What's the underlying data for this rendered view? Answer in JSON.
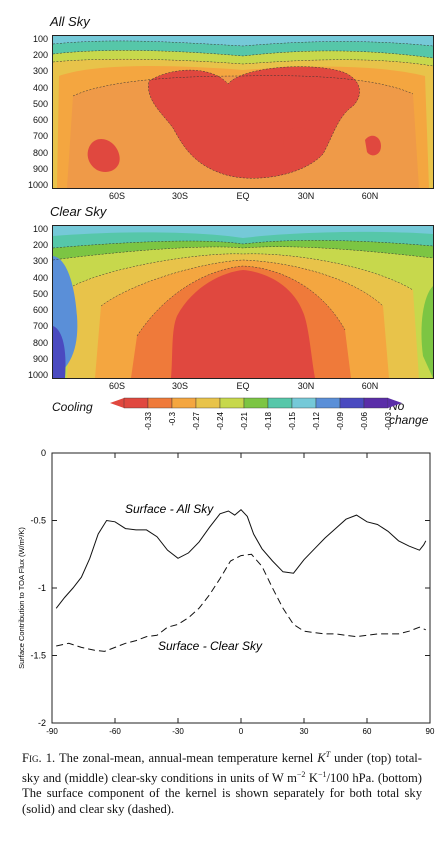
{
  "panels": {
    "all_sky": {
      "title": "All Sky"
    },
    "clear_sky": {
      "title": "Clear Sky"
    },
    "pressure_ticks": [
      "100",
      "200",
      "300",
      "400",
      "500",
      "600",
      "700",
      "800",
      "900",
      "1000"
    ],
    "lat_ticks": [
      "60S",
      "30S",
      "EQ",
      "30N",
      "60N"
    ]
  },
  "colorbar": {
    "left_label": "Cooling",
    "right_label": "No change",
    "ticks": [
      "-0.33",
      "-0.3",
      "-0.27",
      "-0.24",
      "-0.21",
      "-0.18",
      "-0.15",
      "-0.12",
      "-0.09",
      "-0.06",
      "-0.03"
    ],
    "colors": [
      "#e0483f",
      "#ef7a3a",
      "#f4a640",
      "#e8c34a",
      "#c7d84c",
      "#7cc543",
      "#56c7a9",
      "#75c9d8",
      "#5a8fd8",
      "#4a4ac0",
      "#5a2da8"
    ]
  },
  "caption": {
    "lead": "Fig. 1.",
    "text_1": "The zonal-mean, annual-mean temperature kernel ",
    "kernel_symbol": "K",
    "kernel_sup": "T",
    "text_2": " under (top) total-sky and (middle) clear-sky conditions in units of W m",
    "exp1": "−2",
    "text_3": " K",
    "exp2": "−1",
    "text_4": "/100 hPa. (bottom) The surface component of the kernel is shown separately for both total sky (solid) and clear sky (dashed)."
  },
  "chart_data": {
    "type": "line",
    "title": "",
    "xlabel": "",
    "ylabel": "Surface Contribution to TOA Flux (W/m²/K)",
    "xlim": [
      -90,
      90
    ],
    "ylim": [
      -2,
      0
    ],
    "xticks": [
      "-90",
      "-60",
      "-30",
      "0",
      "30",
      "60",
      "90"
    ],
    "yticks": [
      "0",
      "-0.5",
      "-1",
      "-1.5",
      "-2"
    ],
    "series": [
      {
        "name": "Surface - All Sky",
        "style": "solid",
        "x": [
          -88,
          -84,
          -80,
          -76,
          -72,
          -68,
          -64,
          -60,
          -55,
          -50,
          -45,
          -40,
          -35,
          -30,
          -25,
          -20,
          -15,
          -10,
          -6,
          -3,
          0,
          3,
          6,
          10,
          15,
          20,
          25,
          30,
          35,
          40,
          45,
          50,
          55,
          60,
          65,
          70,
          75,
          80,
          85,
          87,
          88
        ],
        "y": [
          -1.15,
          -1.07,
          -1.0,
          -0.92,
          -0.78,
          -0.6,
          -0.5,
          -0.51,
          -0.56,
          -0.57,
          -0.57,
          -0.62,
          -0.72,
          -0.78,
          -0.74,
          -0.66,
          -0.55,
          -0.45,
          -0.43,
          -0.46,
          -0.42,
          -0.47,
          -0.6,
          -0.71,
          -0.8,
          -0.88,
          -0.89,
          -0.79,
          -0.71,
          -0.63,
          -0.56,
          -0.49,
          -0.46,
          -0.51,
          -0.53,
          -0.58,
          -0.65,
          -0.69,
          -0.72,
          -0.68,
          -0.65
        ]
      },
      {
        "name": "Surface - Clear Sky",
        "style": "dashed",
        "x": [
          -88,
          -82,
          -76,
          -70,
          -65,
          -60,
          -55,
          -50,
          -45,
          -40,
          -35,
          -30,
          -25,
          -20,
          -15,
          -10,
          -5,
          0,
          5,
          10,
          15,
          20,
          25,
          30,
          35,
          40,
          45,
          50,
          55,
          60,
          65,
          70,
          75,
          80,
          85,
          88
        ],
        "y": [
          -1.43,
          -1.41,
          -1.44,
          -1.46,
          -1.47,
          -1.44,
          -1.41,
          -1.39,
          -1.36,
          -1.35,
          -1.29,
          -1.27,
          -1.22,
          -1.15,
          -1.05,
          -0.93,
          -0.8,
          -0.76,
          -0.75,
          -0.84,
          -1.0,
          -1.15,
          -1.27,
          -1.32,
          -1.33,
          -1.34,
          -1.34,
          -1.35,
          -1.36,
          -1.35,
          -1.34,
          -1.34,
          -1.34,
          -1.32,
          -1.29,
          -1.31
        ]
      }
    ]
  }
}
